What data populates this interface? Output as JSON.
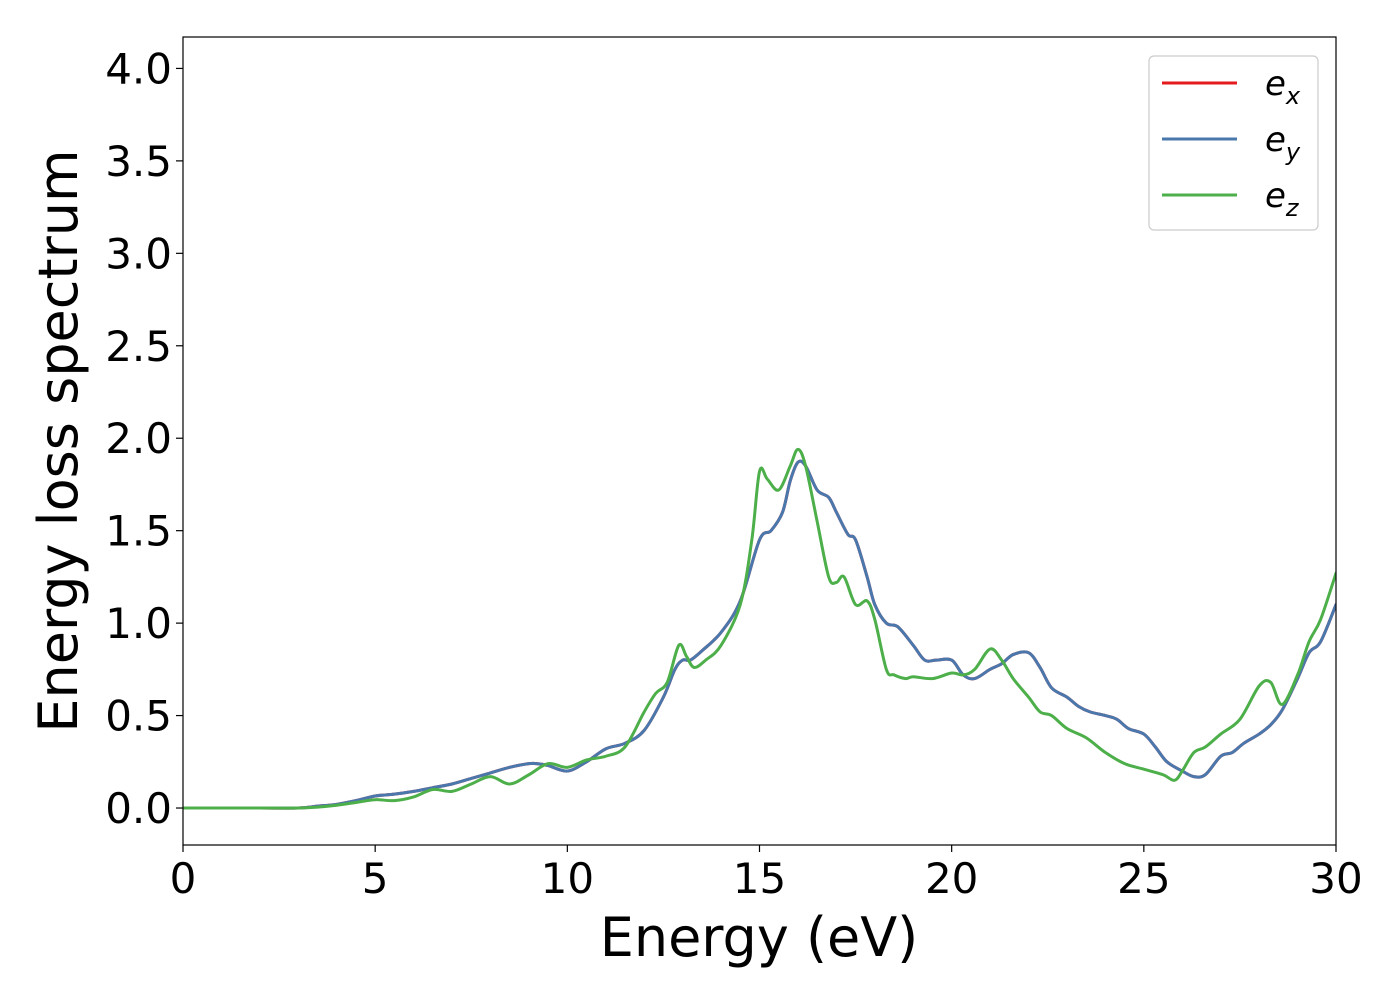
{
  "chart_data": {
    "type": "line",
    "title": "",
    "xlabel": "Energy (eV)",
    "ylabel": "Energy loss spectrum",
    "xlim": [
      0,
      30
    ],
    "ylim": [
      -0.2,
      4.17
    ],
    "xticks": [
      0,
      5,
      10,
      15,
      20,
      25,
      30
    ],
    "xtick_labels": [
      "0",
      "5",
      "10",
      "15",
      "20",
      "25",
      "30"
    ],
    "yticks": [
      0.0,
      0.5,
      1.0,
      1.5,
      2.0,
      2.5,
      3.0,
      3.5,
      4.0
    ],
    "ytick_labels": [
      "0.0",
      "0.5",
      "1.0",
      "1.5",
      "2.0",
      "2.5",
      "3.0",
      "3.5",
      "4.0"
    ],
    "grid": false,
    "legend_position": "top-right",
    "series": [
      {
        "name": "e_x",
        "label_base": "e",
        "label_sub": "x",
        "color": "#e41a1c",
        "x": [
          0,
          1,
          2,
          3,
          3.5,
          4,
          4.5,
          5,
          5.5,
          6,
          6.5,
          7,
          7.5,
          8,
          8.5,
          9,
          9.2,
          9.5,
          10,
          10.5,
          11,
          11.5,
          12,
          12.5,
          12.8,
          13,
          13.2,
          13.5,
          14,
          14.5,
          15,
          15.3,
          15.6,
          15.8,
          16,
          16.2,
          16.5,
          16.8,
          17,
          17.3,
          17.5,
          17.8,
          18,
          18.3,
          18.6,
          19,
          19.3,
          19.6,
          20,
          20.3,
          20.6,
          21,
          21.3,
          21.6,
          22,
          22.3,
          22.6,
          23,
          23.3,
          23.6,
          24,
          24.3,
          24.6,
          25,
          25.3,
          25.6,
          26,
          26.3,
          26.6,
          27,
          27.3,
          27.6,
          28,
          28.3,
          28.6,
          29,
          29.3,
          29.6,
          30
        ],
        "values": [
          0,
          0,
          0,
          0,
          0.01,
          0.02,
          0.04,
          0.065,
          0.075,
          0.09,
          0.11,
          0.13,
          0.16,
          0.19,
          0.22,
          0.24,
          0.24,
          0.23,
          0.2,
          0.25,
          0.32,
          0.35,
          0.42,
          0.6,
          0.75,
          0.8,
          0.8,
          0.85,
          0.95,
          1.12,
          1.45,
          1.5,
          1.6,
          1.77,
          1.87,
          1.85,
          1.72,
          1.68,
          1.6,
          1.48,
          1.45,
          1.25,
          1.1,
          1.0,
          0.98,
          0.88,
          0.8,
          0.8,
          0.8,
          0.72,
          0.7,
          0.75,
          0.78,
          0.83,
          0.84,
          0.76,
          0.65,
          0.6,
          0.55,
          0.52,
          0.5,
          0.48,
          0.43,
          0.4,
          0.33,
          0.25,
          0.2,
          0.17,
          0.18,
          0.28,
          0.3,
          0.35,
          0.4,
          0.45,
          0.53,
          0.7,
          0.84,
          0.9,
          1.1
        ]
      },
      {
        "name": "e_y",
        "label_base": "e",
        "label_sub": "y",
        "color": "#4a78ac",
        "x": [
          0,
          1,
          2,
          3,
          3.5,
          4,
          4.5,
          5,
          5.5,
          6,
          6.5,
          7,
          7.5,
          8,
          8.5,
          9,
          9.2,
          9.5,
          10,
          10.5,
          11,
          11.5,
          12,
          12.5,
          12.8,
          13,
          13.2,
          13.5,
          14,
          14.5,
          15,
          15.3,
          15.6,
          15.8,
          16,
          16.2,
          16.5,
          16.8,
          17,
          17.3,
          17.5,
          17.8,
          18,
          18.3,
          18.6,
          19,
          19.3,
          19.6,
          20,
          20.3,
          20.6,
          21,
          21.3,
          21.6,
          22,
          22.3,
          22.6,
          23,
          23.3,
          23.6,
          24,
          24.3,
          24.6,
          25,
          25.3,
          25.6,
          26,
          26.3,
          26.6,
          27,
          27.3,
          27.6,
          28,
          28.3,
          28.6,
          29,
          29.3,
          29.6,
          30
        ],
        "values": [
          0,
          0,
          0,
          0,
          0.01,
          0.02,
          0.04,
          0.065,
          0.075,
          0.09,
          0.11,
          0.13,
          0.16,
          0.19,
          0.22,
          0.24,
          0.24,
          0.23,
          0.2,
          0.25,
          0.32,
          0.35,
          0.42,
          0.6,
          0.75,
          0.8,
          0.8,
          0.85,
          0.95,
          1.12,
          1.45,
          1.5,
          1.6,
          1.77,
          1.87,
          1.85,
          1.72,
          1.68,
          1.6,
          1.48,
          1.45,
          1.25,
          1.1,
          1.0,
          0.98,
          0.88,
          0.8,
          0.8,
          0.8,
          0.72,
          0.7,
          0.75,
          0.78,
          0.83,
          0.84,
          0.76,
          0.65,
          0.6,
          0.55,
          0.52,
          0.5,
          0.48,
          0.43,
          0.4,
          0.33,
          0.25,
          0.2,
          0.17,
          0.18,
          0.28,
          0.3,
          0.35,
          0.4,
          0.45,
          0.53,
          0.7,
          0.84,
          0.9,
          1.1
        ]
      },
      {
        "name": "e_z",
        "label_base": "e",
        "label_sub": "z",
        "color": "#4daf4a",
        "x": [
          0,
          1,
          2,
          3,
          3.5,
          4,
          4.5,
          5,
          5.5,
          6,
          6.5,
          7,
          7.5,
          8,
          8.5,
          9,
          9.5,
          10,
          10.5,
          11,
          11.5,
          12,
          12.3,
          12.6,
          12.9,
          13.1,
          13.3,
          13.6,
          14,
          14.5,
          14.8,
          15,
          15.2,
          15.5,
          15.8,
          16,
          16.2,
          16.5,
          16.8,
          17,
          17.2,
          17.5,
          17.8,
          18,
          18.3,
          18.5,
          18.8,
          19,
          19.5,
          20,
          20.3,
          20.6,
          21,
          21.3,
          21.6,
          22,
          22.3,
          22.6,
          23,
          23.5,
          24,
          24.5,
          25,
          25.5,
          25.8,
          26,
          26.3,
          26.6,
          27,
          27.5,
          28,
          28.3,
          28.6,
          29,
          29.3,
          29.6,
          30
        ],
        "values": [
          0,
          0,
          0,
          0,
          0.005,
          0.015,
          0.03,
          0.045,
          0.04,
          0.06,
          0.1,
          0.09,
          0.13,
          0.17,
          0.13,
          0.18,
          0.24,
          0.22,
          0.26,
          0.28,
          0.33,
          0.52,
          0.62,
          0.68,
          0.88,
          0.82,
          0.76,
          0.8,
          0.88,
          1.1,
          1.45,
          1.82,
          1.78,
          1.72,
          1.85,
          1.94,
          1.85,
          1.55,
          1.25,
          1.22,
          1.25,
          1.1,
          1.12,
          1.02,
          0.75,
          0.72,
          0.7,
          0.71,
          0.7,
          0.73,
          0.72,
          0.75,
          0.86,
          0.8,
          0.7,
          0.6,
          0.52,
          0.5,
          0.43,
          0.38,
          0.3,
          0.24,
          0.21,
          0.18,
          0.15,
          0.2,
          0.3,
          0.33,
          0.4,
          0.48,
          0.66,
          0.68,
          0.56,
          0.72,
          0.9,
          1.02,
          1.27
        ]
      }
    ]
  }
}
